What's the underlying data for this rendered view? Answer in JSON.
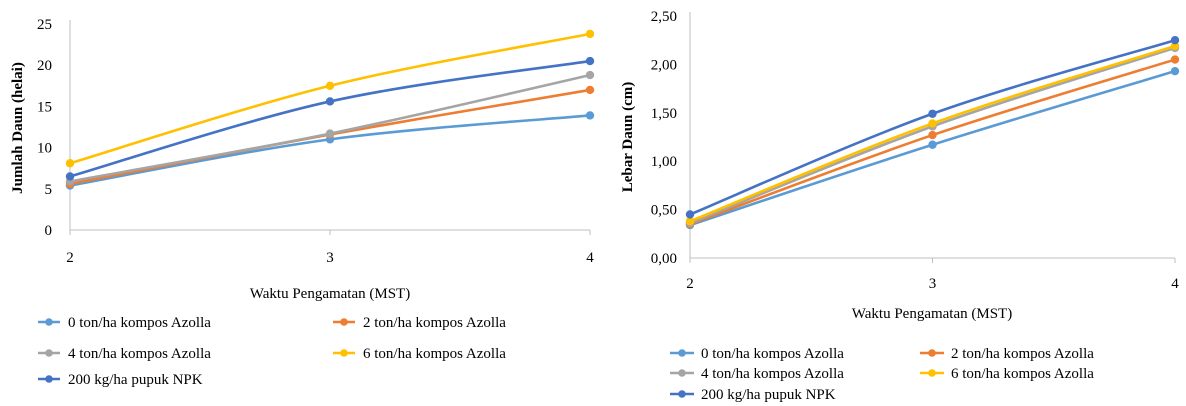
{
  "series_colors": [
    "#5B9BD5",
    "#ED7D31",
    "#A5A5A5",
    "#FFC000",
    "#4472C4"
  ],
  "chart_data": [
    {
      "type": "line",
      "title": "",
      "xlabel": "Waktu Pengamatan (MST)",
      "ylabel": "Jumlah Daun (helai)",
      "x": [
        2,
        3,
        4
      ],
      "ylim": [
        0,
        25
      ],
      "yticks": [
        "0",
        "5",
        "10",
        "15",
        "20",
        "25"
      ],
      "grid": false,
      "legend_position": "bottom",
      "series": [
        {
          "name": "0 ton/ha kompos Azolla",
          "values": [
            5.4,
            11.0,
            13.9
          ]
        },
        {
          "name": "2 ton/ha kompos Azolla",
          "values": [
            5.6,
            11.6,
            17.0
          ]
        },
        {
          "name": "4 ton/ha kompos Azolla",
          "values": [
            5.9,
            11.7,
            18.8
          ]
        },
        {
          "name": "6 ton/ha kompos Azolla",
          "values": [
            8.1,
            17.5,
            23.8
          ]
        },
        {
          "name": "200 kg/ha pupuk NPK",
          "values": [
            6.5,
            15.6,
            20.5
          ]
        }
      ]
    },
    {
      "type": "line",
      "title": "",
      "xlabel": "Waktu Pengamatan (MST)",
      "ylabel": "Lebar Daun (cm)",
      "x": [
        2,
        3,
        4
      ],
      "ylim": [
        0,
        2.5
      ],
      "yticks": [
        "0,00",
        "0,50",
        "1,00",
        "1,50",
        "2,00",
        "2,50"
      ],
      "grid": false,
      "legend_position": "bottom",
      "series": [
        {
          "name": "0 ton/ha kompos Azolla",
          "values": [
            0.34,
            1.17,
            1.93
          ]
        },
        {
          "name": "2 ton/ha kompos Azolla",
          "values": [
            0.35,
            1.27,
            2.05
          ]
        },
        {
          "name": "4 ton/ha kompos Azolla",
          "values": [
            0.36,
            1.36,
            2.17
          ]
        },
        {
          "name": "6 ton/ha kompos Azolla",
          "values": [
            0.38,
            1.39,
            2.19
          ]
        },
        {
          "name": "200 kg/ha pupuk NPK",
          "values": [
            0.45,
            1.49,
            2.25
          ]
        }
      ]
    }
  ]
}
